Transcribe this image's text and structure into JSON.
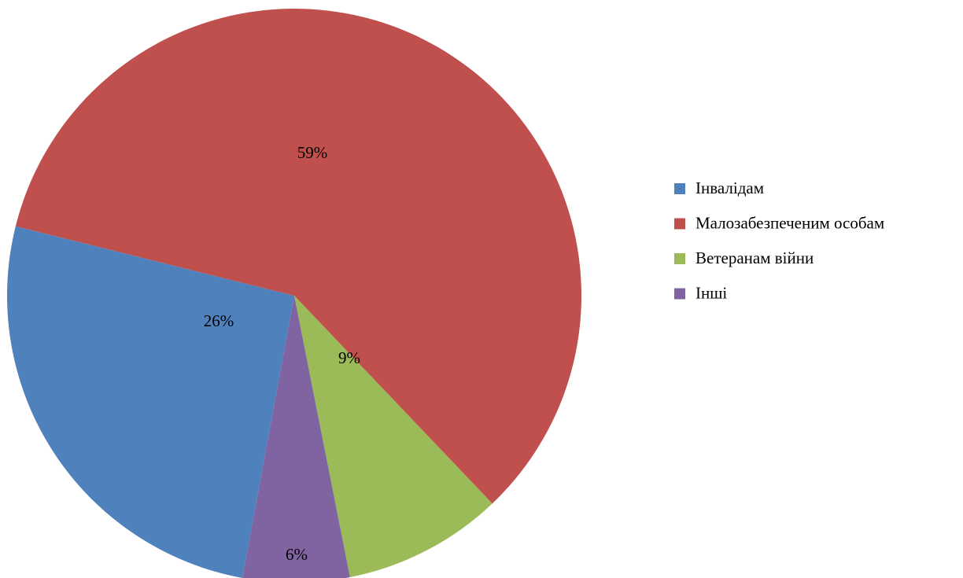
{
  "chart_data": {
    "type": "pie",
    "categories": [
      "Інвалідам",
      "Малозабезпеченим особам",
      "Ветеранам війни",
      "Інші"
    ],
    "values": [
      26,
      59,
      9,
      6
    ],
    "value_labels": [
      "26%",
      "59%",
      "9%",
      "6%"
    ],
    "colors": [
      "#4f81bd",
      "#c0504d",
      "#9bbb59",
      "#8064a2"
    ],
    "legend": "right"
  }
}
